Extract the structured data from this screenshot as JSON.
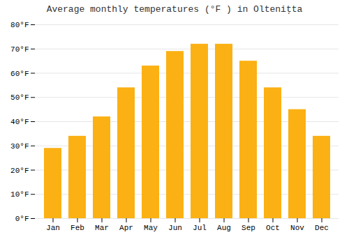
{
  "chart_data": {
    "type": "bar",
    "title": "Average monthly temperatures (°F ) in Olteniţta",
    "categories": [
      "Jan",
      "Feb",
      "Mar",
      "Apr",
      "May",
      "Jun",
      "Jul",
      "Aug",
      "Sep",
      "Oct",
      "Nov",
      "Dec"
    ],
    "values": [
      29,
      34,
      42,
      54,
      63,
      69,
      72,
      72,
      65,
      54,
      45,
      34
    ],
    "color": "#FBB114",
    "ylim": [
      0,
      80
    ],
    "yticks": [
      {
        "value": 0,
        "label": "0°F"
      },
      {
        "value": 10,
        "label": "10°F"
      },
      {
        "value": 20,
        "label": "20°F"
      },
      {
        "value": 30,
        "label": "30°F"
      },
      {
        "value": 40,
        "label": "40°F"
      },
      {
        "value": 50,
        "label": "50°F"
      },
      {
        "value": 60,
        "label": "60°F"
      },
      {
        "value": 70,
        "label": "70°F"
      },
      {
        "value": 80,
        "label": "80°F"
      }
    ],
    "grid": true
  }
}
